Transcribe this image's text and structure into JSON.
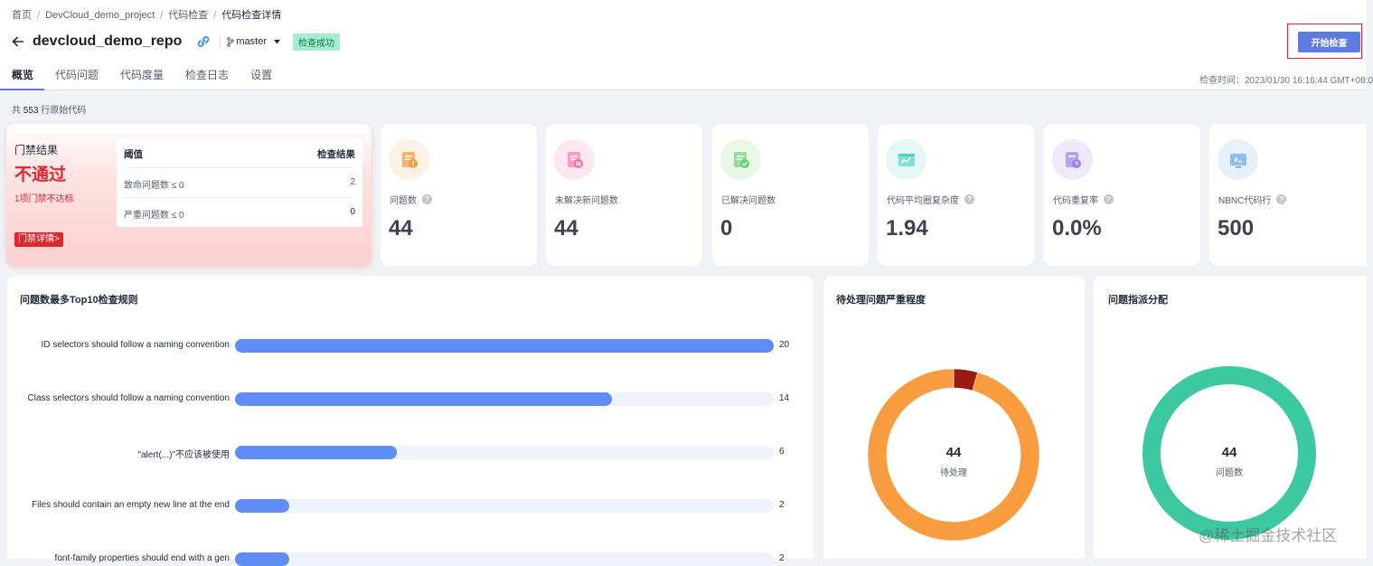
{
  "breadcrumb": {
    "home": "首页",
    "project": "DevCloud_demo_project",
    "section": "代码检查",
    "current": "代码检查详情"
  },
  "repo": {
    "title": "devcloud_demo_repo",
    "branch": "master",
    "status": "检查成功"
  },
  "start_button": "开始检查",
  "tabs": [
    "概览",
    "代码问题",
    "代码度量",
    "检查日志",
    "设置"
  ],
  "check_time": "检查时间：2023/01/30 16:16:44 GMT+08:0",
  "lines": {
    "prefix": "共",
    "count": "553",
    "suffix": "行原始代码"
  },
  "gate": {
    "title": "门禁结果",
    "result": "不通过",
    "sub": "1项门禁不达标",
    "detail_button": "门禁详情>",
    "col_threshold": "阈值",
    "col_result": "检查结果",
    "rows": [
      {
        "name": "致命问题数 ≤ 0",
        "value": "2"
      },
      {
        "name": "严重问题数 ≤ 0",
        "value": "0"
      }
    ]
  },
  "metrics": [
    {
      "label": "问题数",
      "value": "44",
      "help": true,
      "icon": "issues-icon",
      "bg": "#fef2e6",
      "color": "#f59a3c"
    },
    {
      "label": "未解决新问题数",
      "value": "44",
      "help": false,
      "icon": "new-issues-icon",
      "bg": "#fde7f1",
      "color": "#f06fa6"
    },
    {
      "label": "已解决问题数",
      "value": "0",
      "help": false,
      "icon": "resolved-issues-icon",
      "bg": "#e8f7e6",
      "color": "#6bcf78"
    },
    {
      "label": "代码平均圈复杂度",
      "value": "1.94",
      "help": true,
      "icon": "complexity-icon",
      "bg": "#e3f8f6",
      "color": "#4fd2c5"
    },
    {
      "label": "代码重复率",
      "value": "0.0%",
      "help": true,
      "icon": "duplication-icon",
      "bg": "#eeeafc",
      "color": "#9b82ee"
    },
    {
      "label": "NBNC代码行",
      "value": "500",
      "help": true,
      "icon": "nbnc-lines-icon",
      "bg": "#e6f1fd",
      "color": "#5aa4f0"
    }
  ],
  "top_rules": {
    "title": "问题数最多Top10检查规则",
    "max": 20,
    "rows": [
      {
        "label": "ID selectors should follow a naming convention",
        "value": 20
      },
      {
        "label": "Class selectors should follow a naming convention",
        "value": 14
      },
      {
        "label": "\"alert(...)\"不应该被使用",
        "value": 6
      },
      {
        "label": "Files should contain an empty new line at the end",
        "value": 2
      },
      {
        "label": "font-family properties should end with a gen",
        "value": 2
      }
    ]
  },
  "severity": {
    "title": "待处理问题严重程度",
    "total": "44",
    "center_label": "待处理",
    "segments": [
      {
        "value": 2,
        "color": "#9a1a14"
      },
      {
        "value": 42,
        "color": "#f99b3f"
      }
    ]
  },
  "assignment": {
    "title": "问题指派分配",
    "total": "44",
    "center_label": "问题数",
    "segments": [
      {
        "value": 44,
        "color": "#3cc8a0"
      }
    ]
  },
  "watermark": "@稀土掘金技术社区"
}
